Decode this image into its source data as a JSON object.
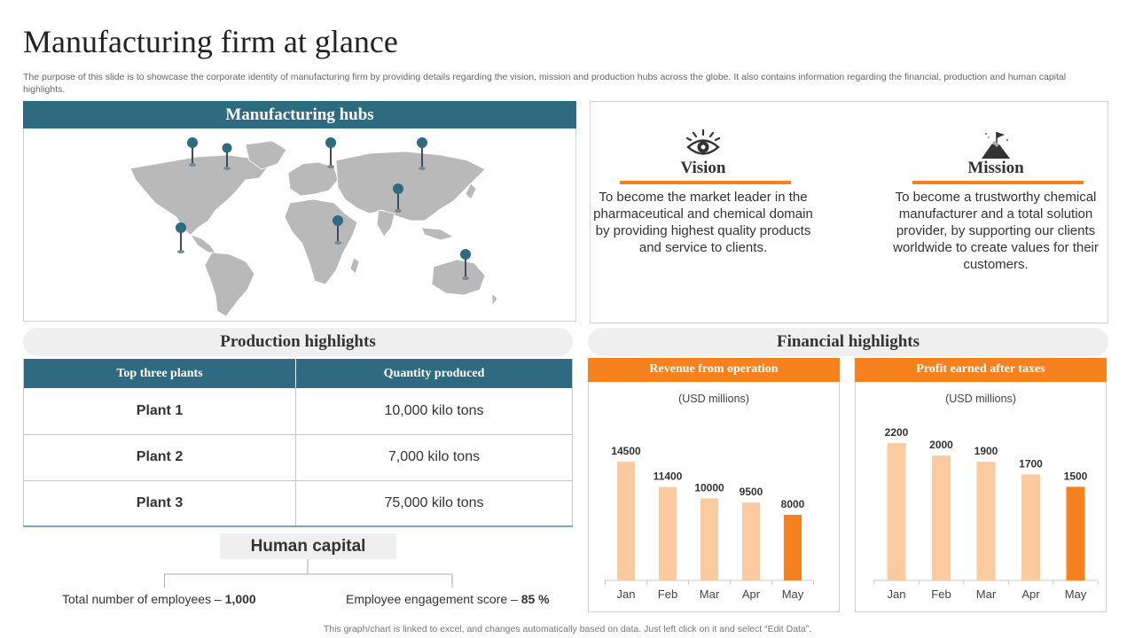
{
  "title": "Manufacturing firm at glance",
  "subtitle": "The purpose of this slide is to showcase the corporate identity of manufacturing firm by providing details regarding the vision, mission and production hubs across the globe. It also contains information regarding the financial, production and human capital highlights.",
  "hubs": {
    "title": "Manufacturing  hubs"
  },
  "vision": {
    "icon": "eye-icon",
    "title": "Vision",
    "text": "To become the market leader in the pharmaceutical and chemical domain by providing highest quality products and service to clients."
  },
  "mission": {
    "icon": "mountain-flag-icon",
    "title": "Mission",
    "text": "To become a trustworthy chemical manufacturer  and a total solution provider, by supporting our clients worldwide to create values for their customers."
  },
  "production": {
    "title": "Production  highlights",
    "headers": [
      "Top three plants",
      "Quantity produced"
    ],
    "rows": [
      {
        "plant": "Plant 1",
        "quantity": "10,000 kilo tons"
      },
      {
        "plant": "Plant 2",
        "quantity": "7,000 kilo tons"
      },
      {
        "plant": "Plant 3",
        "quantity": "75,000 kilo tons"
      }
    ]
  },
  "human_capital": {
    "title": "Human capital",
    "employees_label": "Total number of employees – ",
    "employees_value": "1,000",
    "engagement_label": "Employee engagement score – ",
    "engagement_value": "85 %"
  },
  "financial": {
    "title": "Financial highlights"
  },
  "chart_data": [
    {
      "type": "bar",
      "title": "Revenue from operation",
      "subtitle": "(USD millions)",
      "categories": [
        "Jan",
        "Feb",
        "Mar",
        "Apr",
        "May"
      ],
      "values": [
        14500,
        11400,
        10000,
        9500,
        8000
      ],
      "data_labels": [
        "14500",
        "11400",
        "10000",
        "9500",
        "8000"
      ],
      "colors": [
        "#fbcb9f",
        "#fbcb9f",
        "#fbcb9f",
        "#fbcb9f",
        "#f5821f"
      ],
      "ylim": [
        0,
        16000
      ]
    },
    {
      "type": "bar",
      "title": "Profit  earned after taxes",
      "subtitle": "(USD millions)",
      "categories": [
        "Jan",
        "Feb",
        "Mar",
        "Apr",
        "May"
      ],
      "values": [
        2200,
        2000,
        1900,
        1700,
        1500
      ],
      "data_labels": [
        "2200",
        "2000",
        "1900",
        "1700",
        "1500"
      ],
      "colors": [
        "#fbcb9f",
        "#fbcb9f",
        "#fbcb9f",
        "#fbcb9f",
        "#f5821f"
      ],
      "ylim": [
        0,
        2400
      ]
    }
  ],
  "footer": "This graph/chart is linked to excel,  and changes automatically based on data. Just left click on it and select “Edit Data”."
}
